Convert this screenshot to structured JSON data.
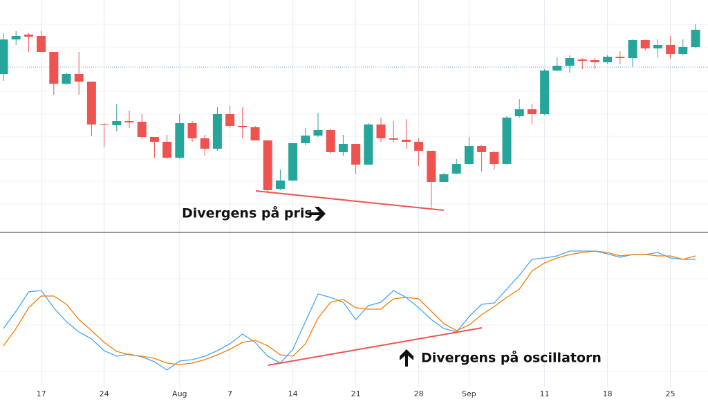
{
  "chart_data": [
    {
      "type": "candlestick",
      "up_color": "#26a69a",
      "down_color": "#ef5350",
      "ylim": [
        5,
        340
      ],
      "open": [
        233,
        283,
        290,
        288,
        265,
        219,
        233,
        222,
        160,
        159,
        165,
        164,
        142,
        135,
        112,
        162,
        140,
        125,
        175,
        158,
        156,
        137,
        67,
        79,
        133,
        144,
        152,
        120,
        132,
        102,
        160,
        140,
        138,
        135,
        122,
        77,
        89,
        103,
        129,
        120,
        103,
        172,
        182,
        175,
        238,
        245,
        254,
        253,
        250,
        258,
        256,
        282,
        270,
        275,
        262,
        272
      ],
      "high": [
        292,
        295,
        292,
        295,
        265,
        235,
        265,
        222,
        162,
        190,
        180,
        175,
        142,
        145,
        175,
        165,
        145,
        185,
        187,
        185,
        158,
        137,
        95,
        133,
        155,
        177,
        154,
        145,
        132,
        162,
        170,
        165,
        168,
        140,
        122,
        90,
        110,
        142,
        130,
        122,
        172,
        197,
        190,
        240,
        257,
        260,
        256,
        256,
        260,
        266,
        283,
        283,
        283,
        288,
        283,
        305
      ],
      "low": [
        223,
        275,
        265,
        265,
        203,
        217,
        203,
        143,
        127,
        150,
        155,
        140,
        112,
        110,
        110,
        135,
        115,
        122,
        155,
        140,
        137,
        62,
        65,
        78,
        130,
        142,
        118,
        115,
        88,
        102,
        135,
        135,
        125,
        100,
        40,
        77,
        88,
        102,
        92,
        95,
        102,
        170,
        160,
        174,
        237,
        235,
        240,
        240,
        248,
        247,
        243,
        267,
        257,
        255,
        260,
        270
      ],
      "close": [
        283,
        288,
        287,
        265,
        219,
        233,
        222,
        160,
        159,
        165,
        163,
        142,
        135,
        112,
        162,
        140,
        125,
        175,
        158,
        156,
        137,
        65,
        79,
        133,
        144,
        152,
        120,
        132,
        102,
        160,
        140,
        138,
        135,
        122,
        77,
        88,
        103,
        129,
        120,
        103,
        170,
        182,
        175,
        238,
        245,
        256,
        252,
        250,
        258,
        256,
        282,
        270,
        275,
        262,
        272,
        297
      ],
      "annotations": [
        "Divergens på pris"
      ]
    },
    {
      "type": "line",
      "ylim": [
        -7,
        211
      ],
      "grid": true,
      "categories": [
        null,
        null,
        null,
        "17",
        null,
        null,
        null,
        null,
        "24",
        null,
        null,
        null,
        null,
        null,
        "Aug",
        null,
        null,
        null,
        "7",
        null,
        null,
        null,
        null,
        "14",
        null,
        null,
        null,
        null,
        "21",
        null,
        null,
        null,
        null,
        "28",
        null,
        null,
        null,
        "Sep",
        null,
        null,
        null,
        null,
        null,
        "11",
        null,
        null,
        null,
        null,
        "18",
        null,
        null,
        null,
        null,
        "25",
        null,
        null
      ],
      "series": [
        {
          "color": "#42a5f5",
          "values": [
            73,
            98,
            126,
            128,
            103,
            83,
            68,
            58,
            41,
            33,
            36,
            32,
            25,
            13,
            26,
            28,
            33,
            41,
            51,
            65,
            53,
            33,
            23,
            43,
            83,
            123,
            118,
            111,
            86,
            106,
            111,
            128,
            118,
            103,
            86,
            73,
            68,
            90,
            108,
            110,
            130,
            150,
            173,
            175,
            178,
            185,
            185,
            185,
            181,
            176,
            180,
            180,
            183,
            175,
            173,
            173
          ]
        },
        {
          "color": "#f57c00",
          "values": [
            48,
            73,
            103,
            120,
            120,
            108,
            86,
            70,
            53,
            40,
            35,
            33,
            30,
            23,
            21,
            23,
            28,
            35,
            43,
            53,
            56,
            48,
            35,
            33,
            51,
            88,
            111,
            115,
            103,
            101,
            101,
            116,
            118,
            116,
            98,
            80,
            70,
            78,
            93,
            105,
            118,
            130,
            156,
            168,
            175,
            180,
            183,
            185,
            183,
            178,
            180,
            180,
            178,
            178,
            173,
            178
          ]
        }
      ],
      "annotations": [
        "Divergens på oscillatorn"
      ]
    }
  ]
}
